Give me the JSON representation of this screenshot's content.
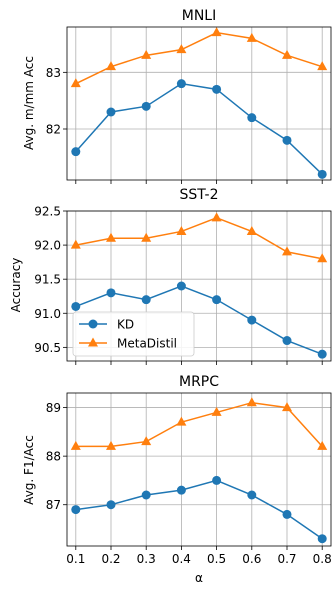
{
  "chart_data": {
    "type": "line",
    "x": [
      0.1,
      0.2,
      0.3,
      0.4,
      0.5,
      0.6,
      0.7,
      0.8
    ],
    "x_tick_labels": [
      "0.1",
      "0.2",
      "0.3",
      "0.4",
      "0.5",
      "0.6",
      "0.7",
      "0.8"
    ],
    "xlabel": "α",
    "xlim": [
      0.075,
      0.825
    ],
    "grid": true,
    "legend": {
      "panel": "SST-2",
      "placement": "lower-left",
      "entries": [
        "KD",
        "MetaDistil"
      ]
    },
    "series_styles": [
      {
        "name": "KD",
        "color": "#1f77b4",
        "marker": "circle"
      },
      {
        "name": "MetaDistil",
        "color": "#ff7f0e",
        "marker": "triangle-up"
      }
    ],
    "panels": [
      {
        "title": "MNLI",
        "ylabel": "Avg. m/mm Acc",
        "ylim": [
          81.1,
          83.8
        ],
        "yticks": [
          82,
          83
        ],
        "y_tick_labels": [
          "82",
          "83"
        ],
        "series": [
          {
            "name": "KD",
            "values": [
              81.6,
              82.3,
              82.4,
              82.8,
              82.7,
              82.2,
              81.8,
              81.2
            ]
          },
          {
            "name": "MetaDistil",
            "values": [
              82.8,
              83.1,
              83.3,
              83.4,
              83.7,
              83.6,
              83.3,
              83.1
            ]
          }
        ]
      },
      {
        "title": "SST-2",
        "ylabel": "Accuracy",
        "ylim": [
          90.3,
          92.5
        ],
        "yticks": [
          90.5,
          91.0,
          91.5,
          92.0,
          92.5
        ],
        "y_tick_labels": [
          "90.5",
          "91.0",
          "91.5",
          "92.0",
          "92.5"
        ],
        "series": [
          {
            "name": "KD",
            "values": [
              91.1,
              91.3,
              91.2,
              91.4,
              91.2,
              90.9,
              90.6,
              90.4
            ]
          },
          {
            "name": "MetaDistil",
            "values": [
              92.0,
              92.1,
              92.1,
              92.2,
              92.4,
              92.2,
              91.9,
              91.8
            ]
          }
        ]
      },
      {
        "title": "MRPC",
        "ylabel": "Avg. F1/Acc",
        "ylim": [
          86.15,
          89.3
        ],
        "yticks": [
          87,
          88,
          89
        ],
        "y_tick_labels": [
          "87",
          "88",
          "89"
        ],
        "series": [
          {
            "name": "KD",
            "values": [
              86.9,
              87.0,
              87.2,
              87.3,
              87.5,
              87.2,
              86.8,
              86.3
            ]
          },
          {
            "name": "MetaDistil",
            "values": [
              88.2,
              88.2,
              88.3,
              88.7,
              88.9,
              89.1,
              89.0,
              88.2
            ]
          }
        ]
      }
    ]
  }
}
